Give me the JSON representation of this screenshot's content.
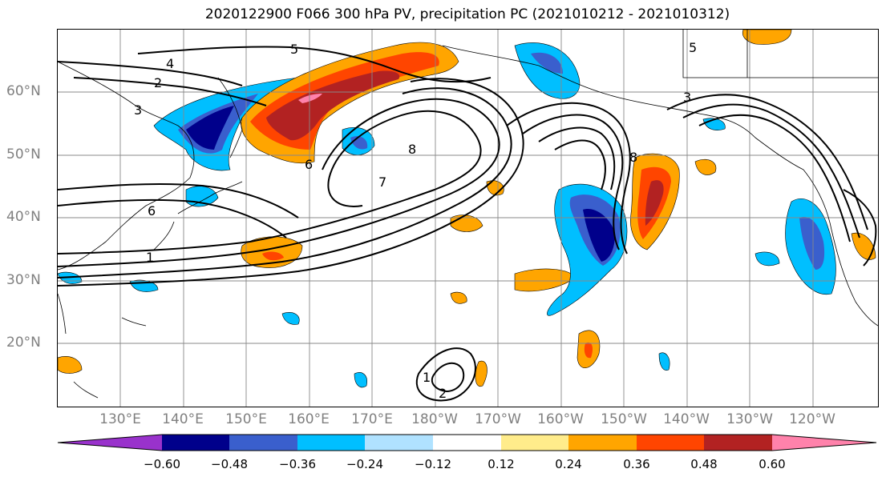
{
  "title": "2020122900 F066 300 hPa PV, precipitation PC (2021010212 - 2021010312)",
  "map": {
    "lat_labels": [
      "60°N",
      "50°N",
      "40°N",
      "30°N",
      "20°N"
    ],
    "lon_labels": [
      "130°E",
      "140°E",
      "150°E",
      "160°E",
      "170°E",
      "180°W",
      "170°W",
      "160°W",
      "150°W",
      "140°W",
      "130°W",
      "120°W"
    ],
    "pv_contour_labels": [
      "1",
      "2",
      "3",
      "4",
      "5",
      "6",
      "7",
      "8"
    ]
  },
  "colorbar": {
    "colors": [
      "#9932CC",
      "#00008B",
      "#3A5FCD",
      "#00BFFF",
      "#B0E2FF",
      "#FFFFFF",
      "#FFEC8B",
      "#FFA500",
      "#FF4500",
      "#B22222",
      "#FF82AB"
    ],
    "tick_labels": [
      "−0.60",
      "−0.48",
      "−0.36",
      "−0.24",
      "−0.12",
      "0.12",
      "0.24",
      "0.36",
      "0.48",
      "0.60"
    ]
  }
}
